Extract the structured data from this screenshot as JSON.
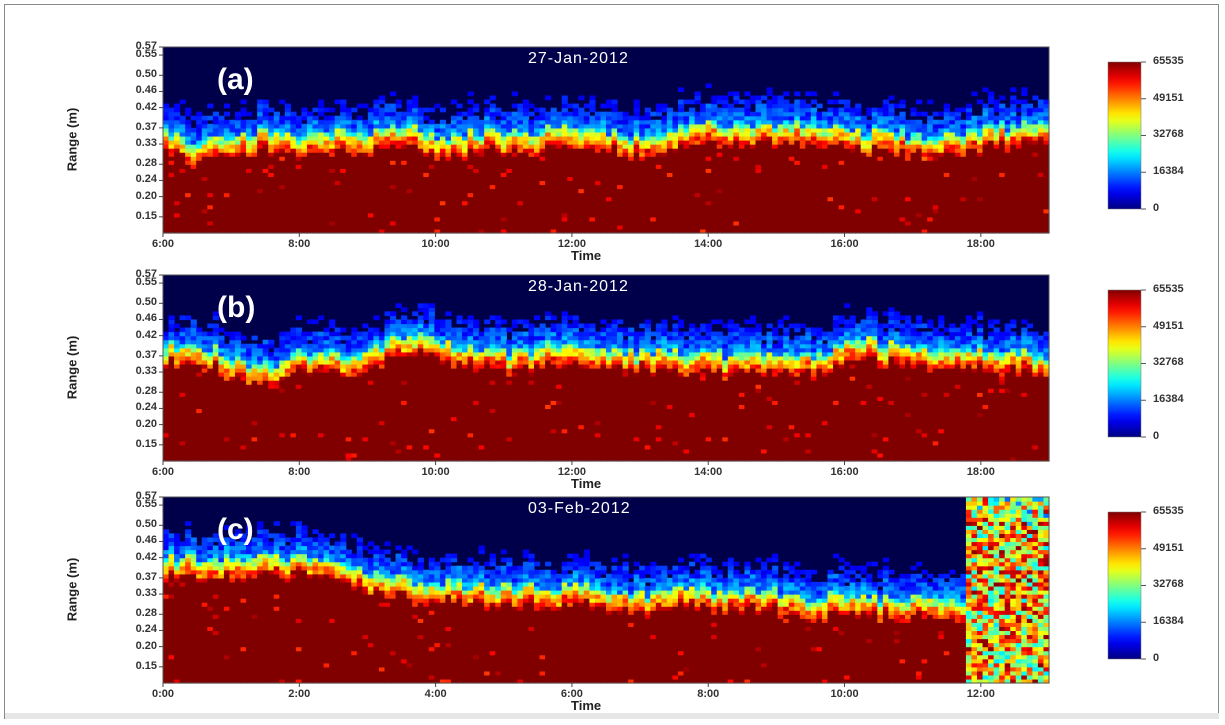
{
  "chart_data": [
    {
      "type": "heatmap",
      "panel_label": "(a)",
      "title": "27-Jan-2012",
      "xlabel": "Time",
      "ylabel": "Range (m)",
      "x_ticks": [
        "6:00",
        "8:00",
        "10:00",
        "12:00",
        "14:00",
        "16:00",
        "18:00"
      ],
      "x_range": [
        "6:00",
        "19:00"
      ],
      "y_ticks": [
        0.15,
        0.2,
        0.24,
        0.28,
        0.33,
        0.37,
        0.42,
        0.46,
        0.5,
        0.55,
        0.57
      ],
      "y_range": [
        0.11,
        0.57
      ],
      "colorbar_ticks": [
        0,
        16384,
        32768,
        49151,
        65535
      ],
      "colormap": "jet",
      "saturation_top_profile": [
        0.31,
        0.28,
        0.3,
        0.31,
        0.31,
        0.3,
        0.3,
        0.31,
        0.31,
        0.33,
        0.31,
        0.3,
        0.31,
        0.31,
        0.31,
        0.32,
        0.31,
        0.31,
        0.3,
        0.31,
        0.32,
        0.33,
        0.33,
        0.33,
        0.32,
        0.33,
        0.32,
        0.31,
        0.31,
        0.3,
        0.31,
        0.31,
        0.32,
        0.33,
        0.33
      ]
    },
    {
      "type": "heatmap",
      "panel_label": "(b)",
      "title": "28-Jan-2012",
      "xlabel": "Time",
      "ylabel": "Range (m)",
      "x_ticks": [
        "6:00",
        "8:00",
        "10:00",
        "12:00",
        "14:00",
        "16:00",
        "18:00"
      ],
      "x_range": [
        "6:00",
        "19:00"
      ],
      "y_ticks": [
        0.15,
        0.2,
        0.24,
        0.28,
        0.33,
        0.37,
        0.42,
        0.46,
        0.5,
        0.55,
        0.57
      ],
      "y_range": [
        0.11,
        0.57
      ],
      "colorbar_ticks": [
        0,
        16384,
        32768,
        49151,
        65535
      ],
      "colormap": "jet",
      "saturation_top_profile": [
        0.35,
        0.35,
        0.33,
        0.3,
        0.3,
        0.33,
        0.34,
        0.32,
        0.33,
        0.37,
        0.37,
        0.35,
        0.34,
        0.33,
        0.33,
        0.35,
        0.34,
        0.34,
        0.33,
        0.33,
        0.33,
        0.33,
        0.32,
        0.33,
        0.33,
        0.32,
        0.35,
        0.36,
        0.35,
        0.34,
        0.35,
        0.34,
        0.33,
        0.33,
        0.32
      ]
    },
    {
      "type": "heatmap",
      "panel_label": "(c)",
      "title": "03-Feb-2012",
      "xlabel": "Time",
      "ylabel": "Range (m)",
      "x_ticks": [
        "0:00",
        "2:00",
        "4:00",
        "6:00",
        "8:00",
        "10:00",
        "12:00"
      ],
      "x_range": [
        "0:00",
        "13:00"
      ],
      "y_ticks": [
        0.15,
        0.2,
        0.24,
        0.28,
        0.33,
        0.37,
        0.42,
        0.46,
        0.5,
        0.55,
        0.57
      ],
      "y_range": [
        0.11,
        0.57
      ],
      "colorbar_ticks": [
        0,
        16384,
        32768,
        49151,
        65535
      ],
      "colormap": "jet",
      "saturation_top_profile": [
        0.37,
        0.37,
        0.37,
        0.37,
        0.37,
        0.37,
        0.37,
        0.35,
        0.33,
        0.32,
        0.31,
        0.31,
        0.3,
        0.3,
        0.3,
        0.29,
        0.3,
        0.29,
        0.28,
        0.29,
        0.3,
        0.29,
        0.3,
        0.29,
        0.28,
        0.27,
        0.28,
        0.27,
        0.27,
        0.28,
        0.27,
        0.26,
        0.26,
        0.26,
        0.26
      ]
    }
  ]
}
